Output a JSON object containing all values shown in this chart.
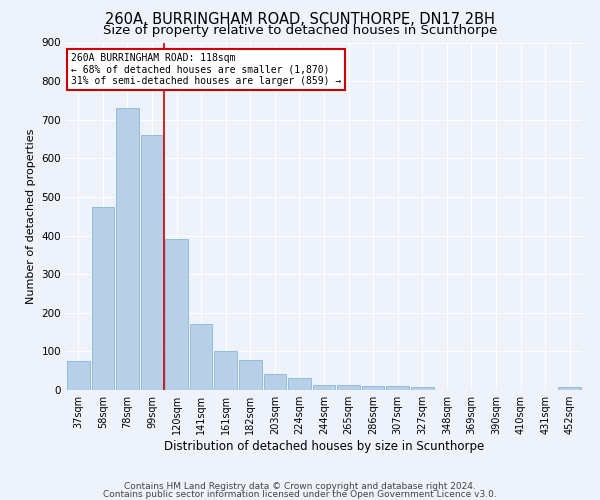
{
  "title": "260A, BURRINGHAM ROAD, SCUNTHORPE, DN17 2BH",
  "subtitle": "Size of property relative to detached houses in Scunthorpe",
  "xlabel": "Distribution of detached houses by size in Scunthorpe",
  "ylabel": "Number of detached properties",
  "categories": [
    "37sqm",
    "58sqm",
    "78sqm",
    "99sqm",
    "120sqm",
    "141sqm",
    "161sqm",
    "182sqm",
    "203sqm",
    "224sqm",
    "244sqm",
    "265sqm",
    "286sqm",
    "307sqm",
    "327sqm",
    "348sqm",
    "369sqm",
    "390sqm",
    "410sqm",
    "431sqm",
    "452sqm"
  ],
  "values": [
    75,
    475,
    730,
    660,
    390,
    172,
    100,
    78,
    42,
    30,
    13,
    12,
    10,
    10,
    8,
    0,
    0,
    0,
    0,
    0,
    8
  ],
  "bar_color": "#b8cfe8",
  "bar_edge_color": "#7aafd4",
  "vline_color": "#cc0000",
  "annotation_text": "260A BURRINGHAM ROAD: 118sqm\n← 68% of detached houses are smaller (1,870)\n31% of semi-detached houses are larger (859) →",
  "annotation_box_color": "#ffffff",
  "annotation_box_edge": "#cc0000",
  "footer_line1": "Contains HM Land Registry data © Crown copyright and database right 2024.",
  "footer_line2": "Contains public sector information licensed under the Open Government Licence v3.0.",
  "ylim": [
    0,
    900
  ],
  "yticks": [
    0,
    100,
    200,
    300,
    400,
    500,
    600,
    700,
    800,
    900
  ],
  "title_fontsize": 10.5,
  "subtitle_fontsize": 9.5,
  "axis_label_fontsize": 8,
  "tick_fontsize": 7.5,
  "footer_fontsize": 6.5,
  "bg_color": "#eef2fa",
  "plot_bg_color": "#eef2fa",
  "grid_color": "#ffffff"
}
